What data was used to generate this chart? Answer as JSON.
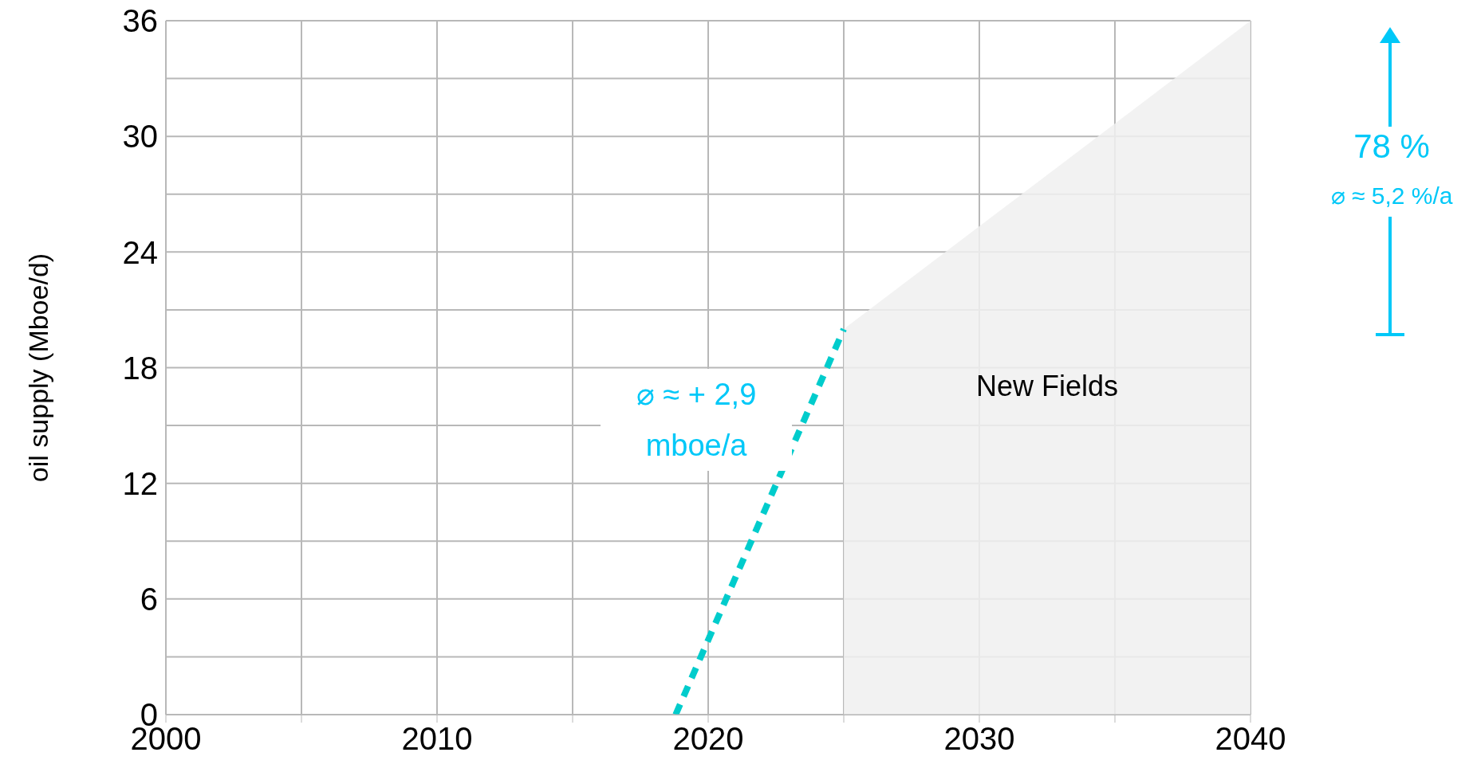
{
  "chart_data": {
    "type": "area",
    "ylabel": "oil supply (Mboe/d)",
    "xlim": [
      2000,
      2040
    ],
    "xticks": [
      2000,
      {
        "value": 2005,
        "label": null
      },
      2010,
      {
        "value": 2015,
        "label": null
      },
      2020,
      {
        "value": 2025,
        "label": null
      },
      2030,
      {
        "value": 2035,
        "label": null
      },
      2040
    ],
    "ylim": [
      0,
      36
    ],
    "yticks": [
      0,
      {
        "value": 3,
        "label": null
      },
      6,
      {
        "value": 9,
        "label": null
      },
      12,
      {
        "value": 15,
        "label": null
      },
      18,
      {
        "value": 21,
        "label": null
      },
      24,
      {
        "value": 27,
        "label": null
      },
      30,
      {
        "value": 33,
        "label": null
      },
      36
    ],
    "grid": true,
    "marker": "none",
    "series": [
      {
        "name": "New Fields",
        "color": "#f0f0f0",
        "x": [
          2025,
          2040
        ],
        "values": [
          20,
          36
        ]
      },
      {
        "type": "line",
        "line_style": "dashed",
        "color": "#00cccc",
        "x": [
          2018.8,
          2025
        ],
        "values": [
          0,
          20
        ]
      }
    ],
    "annotations": [
      "⌀ ≈  + 2,9 mboe/a",
      "78 %",
      "⌀ ≈  5,2 %/a"
    ]
  }
}
